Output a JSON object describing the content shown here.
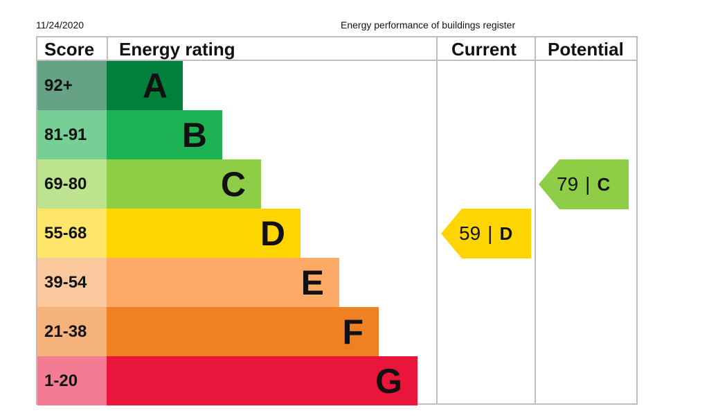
{
  "header": {
    "date": "11/24/2020",
    "title": "Energy performance of buildings register"
  },
  "columns": {
    "score": "Score",
    "energy_rating": "Energy rating",
    "current": "Current",
    "potential": "Potential"
  },
  "chart_data": {
    "type": "bar",
    "categories": [
      "A",
      "B",
      "C",
      "D",
      "E",
      "F",
      "G"
    ],
    "score_ranges": [
      "92+",
      "81-91",
      "69-80",
      "55-68",
      "39-54",
      "21-38",
      "1-20"
    ],
    "band_colors": [
      "#007f3d",
      "#1db354",
      "#8dce46",
      "#ffd500",
      "#fcaa65",
      "#ef8023",
      "#e9153b"
    ],
    "score_cell_colors": [
      "#66a386",
      "#76cf94",
      "#bde38f",
      "#ffe66a",
      "#fcc99e",
      "#f6b27b",
      "#f37b93"
    ],
    "current": {
      "value": 59,
      "band": "D",
      "color": "#ffd500"
    },
    "potential": {
      "value": 79,
      "band": "C",
      "color": "#8dce46"
    },
    "title": ""
  }
}
